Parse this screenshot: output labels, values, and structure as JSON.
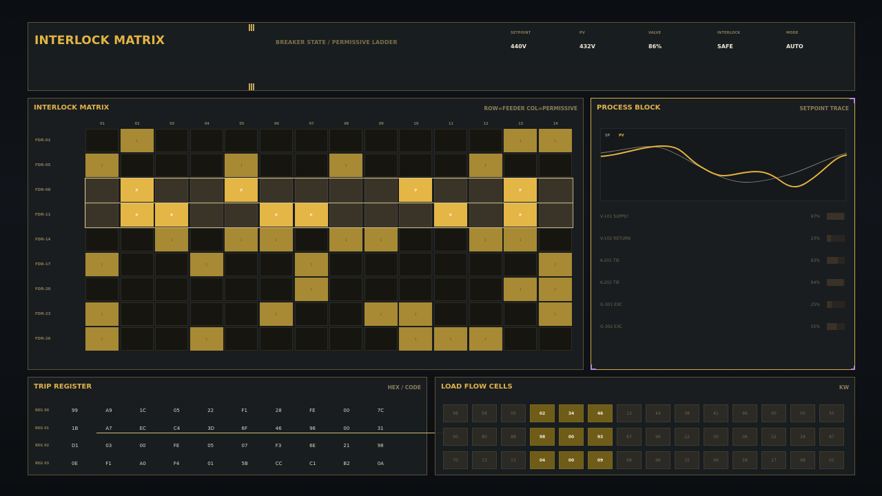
{
  "header": {
    "title": "INTERLOCK MATRIX",
    "subtitle": "BREAKER STATE / PERMISSIVE LADDER",
    "stats": [
      {
        "label": "SETPOINT",
        "value": "440V"
      },
      {
        "label": "PV",
        "value": "432V"
      },
      {
        "label": "VALVE",
        "value": "86%"
      },
      {
        "label": "INTERLOCK",
        "value": "SAFE"
      },
      {
        "label": "MODE",
        "value": "AUTO"
      }
    ]
  },
  "matrix": {
    "title": "INTERLOCK MATRIX",
    "meta": "ROW=FEEDER  COL=PERMISSIVE",
    "columns": [
      "01",
      "02",
      "03",
      "04",
      "05",
      "06",
      "07",
      "08",
      "09",
      "10",
      "11",
      "12",
      "13",
      "14"
    ],
    "rows": [
      {
        "label": "FDR-02",
        "selected": false,
        "cells": [
          0,
          1,
          0,
          0,
          0,
          0,
          0,
          0,
          0,
          0,
          0,
          0,
          1,
          1
        ]
      },
      {
        "label": "FDR-05",
        "selected": false,
        "cells": [
          1,
          0,
          0,
          0,
          1,
          0,
          0,
          1,
          0,
          0,
          0,
          1,
          0,
          0
        ]
      },
      {
        "label": "FDR-08",
        "selected": true,
        "cells": [
          0,
          1,
          0,
          0,
          1,
          0,
          0,
          0,
          0,
          1,
          0,
          0,
          1,
          0
        ]
      },
      {
        "label": "FDR-11",
        "selected": true,
        "cells": [
          0,
          1,
          1,
          0,
          0,
          1,
          1,
          0,
          0,
          0,
          1,
          0,
          1,
          0
        ]
      },
      {
        "label": "FDR-14",
        "selected": false,
        "cells": [
          0,
          0,
          1,
          0,
          1,
          1,
          0,
          1,
          1,
          0,
          0,
          1,
          1,
          0
        ]
      },
      {
        "label": "FDR-17",
        "selected": false,
        "cells": [
          1,
          0,
          0,
          1,
          0,
          0,
          1,
          0,
          0,
          0,
          0,
          0,
          0,
          1
        ]
      },
      {
        "label": "FDR-20",
        "selected": false,
        "cells": [
          0,
          0,
          0,
          0,
          0,
          0,
          1,
          0,
          0,
          0,
          0,
          0,
          1,
          1
        ]
      },
      {
        "label": "FDR-23",
        "selected": false,
        "cells": [
          1,
          0,
          0,
          0,
          0,
          1,
          0,
          0,
          1,
          1,
          0,
          0,
          0,
          1
        ]
      },
      {
        "label": "FDR-26",
        "selected": false,
        "cells": [
          1,
          0,
          0,
          1,
          0,
          0,
          0,
          0,
          0,
          1,
          1,
          1,
          0,
          0
        ]
      }
    ],
    "on_glyph": "1",
    "selected_glyph": "P"
  },
  "process": {
    "title": "PROCESS BLOCK",
    "meta": "SETPOINT TRACE",
    "legend_sp": "SP",
    "legend_pv": "PV",
    "colors": {
      "pv": "#e6b23e",
      "sp": "#8a8476"
    },
    "valves": [
      {
        "name": "V-101 SUPPLY",
        "pct": "97%",
        "level": 0.97
      },
      {
        "name": "V-102 RETURN",
        "pct": "23%",
        "level": 0.23
      },
      {
        "name": "K-201 TIE",
        "pct": "63%",
        "level": 0.63
      },
      {
        "name": "K-202 TIE",
        "pct": "94%",
        "level": 0.94
      },
      {
        "name": "G-301 EXC",
        "pct": "25%",
        "level": 0.25
      },
      {
        "name": "G-302 EXC",
        "pct": "55%",
        "level": 0.55
      }
    ]
  },
  "trip": {
    "title": "TRIP REGISTER",
    "meta": "HEX / CODE",
    "rows": [
      {
        "label": "REG 00",
        "values": [
          "99",
          "A9",
          "1C",
          "05",
          "22",
          "F1",
          "28",
          "FE",
          "00",
          "7C"
        ]
      },
      {
        "label": "REG 01",
        "values": [
          "1B",
          "A7",
          "EC",
          "C4",
          "3D",
          "6F",
          "46",
          "96",
          "00",
          "31"
        ]
      },
      {
        "label": "REG 02",
        "values": [
          "D1",
          "03",
          "00",
          "FE",
          "05",
          "07",
          "F3",
          "6E",
          "21",
          "98"
        ]
      },
      {
        "label": "REG 03",
        "values": [
          "0E",
          "F1",
          "A0",
          "F4",
          "01",
          "5B",
          "CC",
          "C1",
          "B2",
          "0A"
        ]
      }
    ]
  },
  "loadflow": {
    "title": "LOAD FLOW CELLS",
    "meta": "KW",
    "rows": [
      [
        "98",
        "58",
        "05",
        "02",
        "34",
        "46",
        "13",
        "44",
        "38",
        "41",
        "96",
        "00",
        "05",
        "55"
      ],
      [
        "00",
        "80",
        "88",
        "98",
        "00",
        "93",
        "67",
        "96",
        "12",
        "30",
        "06",
        "22",
        "29",
        "87"
      ],
      [
        "70",
        "13",
        "13",
        "04",
        "00",
        "09",
        "98",
        "96",
        "15",
        "06",
        "58",
        "17",
        "98",
        "01"
      ]
    ],
    "hot_columns": [
      3,
      4,
      5
    ]
  }
}
